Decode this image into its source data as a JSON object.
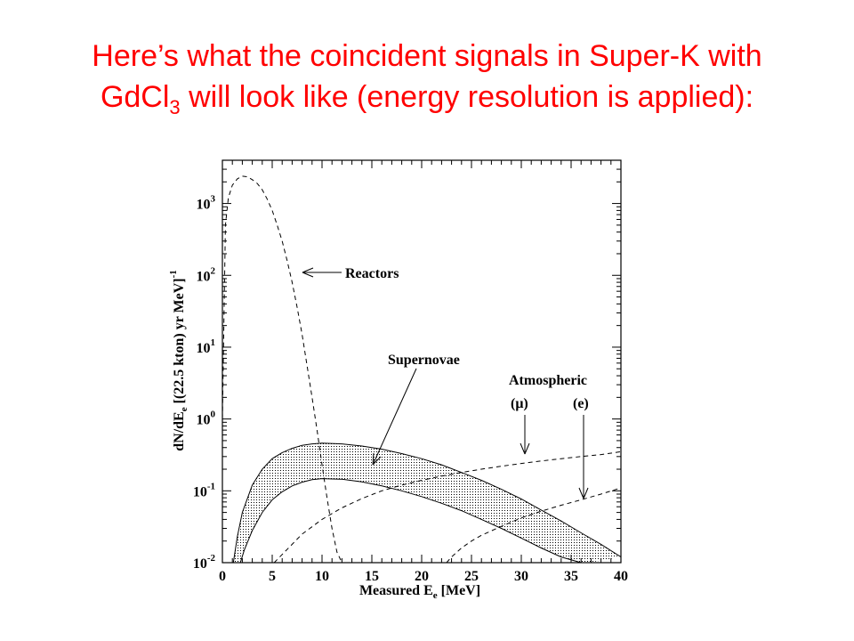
{
  "slide": {
    "title_line1": "Here’s what the coincident signals in Super-K with",
    "title_line2_pre": "GdCl",
    "title_line2_sub": "3",
    "title_line2_post": " will look like (energy resolution is applied):",
    "title_color": "#ff0000"
  },
  "chart_data": {
    "type": "line",
    "log_y": true,
    "xlim": [
      0,
      40
    ],
    "ylim": [
      0.01,
      4000
    ],
    "x_ticks": [
      "0",
      "5",
      "10",
      "15",
      "20",
      "25",
      "30",
      "35",
      "40"
    ],
    "y_ticks": [
      {
        "base": "10",
        "exp": "-2",
        "value": 0.01
      },
      {
        "base": "10",
        "exp": "-1",
        "value": 0.1
      },
      {
        "base": "10",
        "exp": "0",
        "value": 1
      },
      {
        "base": "10",
        "exp": "1",
        "value": 10
      },
      {
        "base": "10",
        "exp": "2",
        "value": 100
      },
      {
        "base": "10",
        "exp": "3",
        "value": 1000
      }
    ],
    "xlabel": {
      "pre": "Measured E",
      "sub": "e",
      "post": "  [MeV]"
    },
    "ylabel": {
      "pre": "dN/dE",
      "sub": "e",
      "mid": "  [(22.5 kton) yr MeV]",
      "sup": "-1"
    },
    "grid": false,
    "annotations": {
      "reactors": "Reactors",
      "supernovae": "Supernovae",
      "atmospheric": "Atmospheric",
      "mu": "(μ)",
      "e": "(e)"
    },
    "series": [
      {
        "name": "Reactors",
        "style": "dashed",
        "x": [
          0,
          0.3,
          0.6,
          1,
          1.5,
          2,
          2.5,
          3,
          3.5,
          4,
          4.5,
          5,
          5.5,
          6,
          6.5,
          7,
          7.5,
          8,
          8.5,
          9,
          9.5,
          10,
          10.5,
          11,
          11.5,
          12
        ],
        "y": [
          1,
          500,
          1200,
          1800,
          2200,
          2400,
          2350,
          2150,
          1900,
          1550,
          1150,
          800,
          500,
          300,
          160,
          80,
          36,
          15,
          5.5,
          2,
          0.7,
          0.23,
          0.08,
          0.03,
          0.014,
          0.01
        ]
      },
      {
        "name": "Supernovae upper",
        "style": "solid",
        "x": [
          1.1,
          1.5,
          2,
          3,
          4,
          5,
          6,
          7,
          8,
          9,
          10,
          12,
          14,
          16,
          18,
          20,
          22,
          24,
          26,
          28,
          30,
          32,
          34,
          36,
          38,
          40
        ],
        "y": [
          0.01,
          0.023,
          0.05,
          0.12,
          0.2,
          0.28,
          0.34,
          0.39,
          0.43,
          0.45,
          0.46,
          0.45,
          0.42,
          0.38,
          0.33,
          0.28,
          0.23,
          0.18,
          0.14,
          0.105,
          0.077,
          0.054,
          0.038,
          0.026,
          0.018,
          0.012
        ]
      },
      {
        "name": "Supernovae lower",
        "style": "solid",
        "x": [
          1.8,
          2.2,
          3,
          4,
          5,
          6,
          7,
          8,
          9,
          10,
          12,
          14,
          16,
          18,
          20,
          22,
          24,
          26,
          28,
          30,
          32,
          34,
          36,
          36.8
        ],
        "y": [
          0.01,
          0.015,
          0.028,
          0.05,
          0.075,
          0.097,
          0.117,
          0.132,
          0.143,
          0.148,
          0.145,
          0.133,
          0.117,
          0.1,
          0.083,
          0.067,
          0.053,
          0.04,
          0.03,
          0.022,
          0.016,
          0.012,
          0.01,
          0.01
        ]
      },
      {
        "name": "Atmospheric (μ)",
        "style": "dashed",
        "x": [
          5.2,
          6,
          7,
          8,
          10,
          12,
          14,
          16,
          18,
          20,
          22,
          24,
          26,
          28,
          30,
          32,
          34,
          36,
          38,
          40
        ],
        "y": [
          0.01,
          0.013,
          0.018,
          0.025,
          0.04,
          0.058,
          0.078,
          0.1,
          0.12,
          0.14,
          0.16,
          0.18,
          0.2,
          0.22,
          0.24,
          0.26,
          0.28,
          0.3,
          0.32,
          0.35
        ]
      },
      {
        "name": "Atmospheric (e)",
        "style": "dashed",
        "x": [
          22.5,
          23,
          24,
          25,
          26,
          28,
          30,
          32,
          34,
          36,
          38,
          40
        ],
        "y": [
          0.01,
          0.012,
          0.016,
          0.02,
          0.024,
          0.032,
          0.042,
          0.052,
          0.063,
          0.075,
          0.09,
          0.11
        ]
      }
    ]
  }
}
